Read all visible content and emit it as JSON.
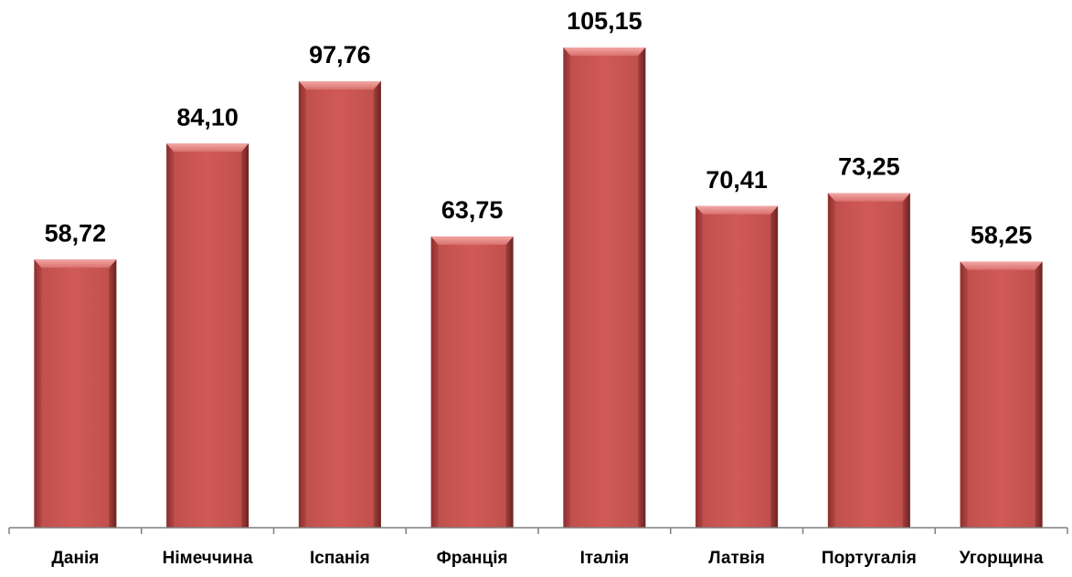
{
  "chart_data": {
    "type": "bar",
    "categories": [
      "Данія",
      "Німеччина",
      "Іспанія",
      "Франція",
      "Італія",
      "Латвія",
      "Португалія",
      "Угорщина"
    ],
    "values": [
      58.72,
      84.1,
      97.76,
      63.75,
      105.15,
      70.41,
      73.25,
      58.25
    ],
    "value_labels": [
      "58,72",
      "84,10",
      "97,76",
      "63,75",
      "105,15",
      "70,41",
      "73,25",
      "58,25"
    ],
    "title": "",
    "xlabel": "",
    "ylabel": "",
    "ylim": [
      0,
      113
    ],
    "grid": false,
    "legend": "none",
    "colors": {
      "bar": "#c0504d",
      "bar_light": "#e58a88",
      "bar_dark": "#8c2f2d",
      "axis": "#7f7f7f",
      "text": "#000000"
    }
  }
}
